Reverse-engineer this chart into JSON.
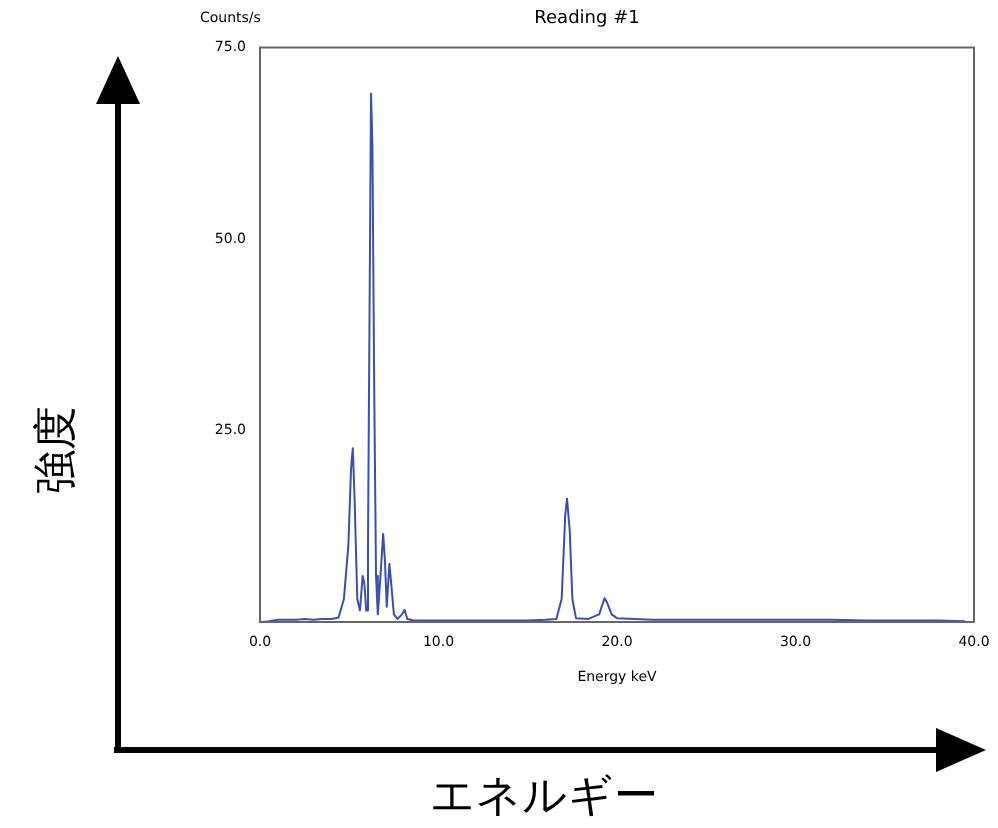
{
  "chart_data": {
    "type": "line",
    "title": "Reading #1",
    "xlabel": "Energy keV",
    "ylabel": "Counts/s",
    "annotations": [
      "強度",
      "エネルギー"
    ],
    "x": [
      0.2,
      0.5,
      1.0,
      1.5,
      2.0,
      2.5,
      3.0,
      3.5,
      4.0,
      4.4,
      4.7,
      4.95,
      5.1,
      5.2,
      5.3,
      5.45,
      5.6,
      5.75,
      5.85,
      5.95,
      6.05,
      6.15,
      6.22,
      6.3,
      6.4,
      6.5,
      6.6,
      6.75,
      6.9,
      7.0,
      7.1,
      7.25,
      7.35,
      7.5,
      7.7,
      7.95,
      8.1,
      8.25,
      8.6,
      9,
      10,
      11,
      12,
      13,
      14,
      15,
      16,
      16.6,
      16.9,
      17.1,
      17.2,
      17.35,
      17.5,
      17.7,
      18.4,
      19.0,
      19.3,
      19.45,
      19.7,
      20,
      21,
      22,
      24,
      26,
      28,
      30,
      32,
      34,
      36,
      38,
      39.5
    ],
    "series": [
      {
        "color": "#3a4fb0",
        "values": [
          0,
          0.1,
          0.3,
          0.3,
          0.3,
          0.4,
          0.3,
          0.4,
          0.4,
          0.6,
          3,
          10,
          20,
          22.7,
          16,
          3,
          1.5,
          6,
          5,
          1.5,
          10,
          45,
          69,
          62,
          30,
          6,
          1,
          6,
          11.5,
          8,
          2,
          7.6,
          5,
          1,
          0.4,
          1,
          1.6,
          0.4,
          0.2,
          0.2,
          0.2,
          0.2,
          0.2,
          0.2,
          0.2,
          0.2,
          0.3,
          0.4,
          3,
          14,
          16.1,
          12,
          3,
          0.5,
          0.4,
          1,
          3.1,
          2.5,
          1,
          0.5,
          0.4,
          0.3,
          0.3,
          0.3,
          0.3,
          0.3,
          0.3,
          0.2,
          0.2,
          0.2,
          0.1
        ]
      }
    ],
    "xlim": [
      0,
      40
    ],
    "xticks": [
      {
        "value": 0,
        "label": "0.0"
      },
      {
        "value": 10,
        "label": "10.0"
      },
      {
        "value": 20,
        "label": "20.0"
      },
      {
        "value": 30,
        "label": "30.0"
      },
      {
        "value": 40,
        "label": "40.0"
      }
    ],
    "ylim": [
      0,
      75
    ],
    "yticks": [
      {
        "value": 25,
        "label": "25.0"
      },
      {
        "value": 50,
        "label": "50.0"
      },
      {
        "value": 75,
        "label": "75.0"
      }
    ],
    "grid": false,
    "legend": false,
    "marker": "none",
    "line_style": "solid"
  }
}
